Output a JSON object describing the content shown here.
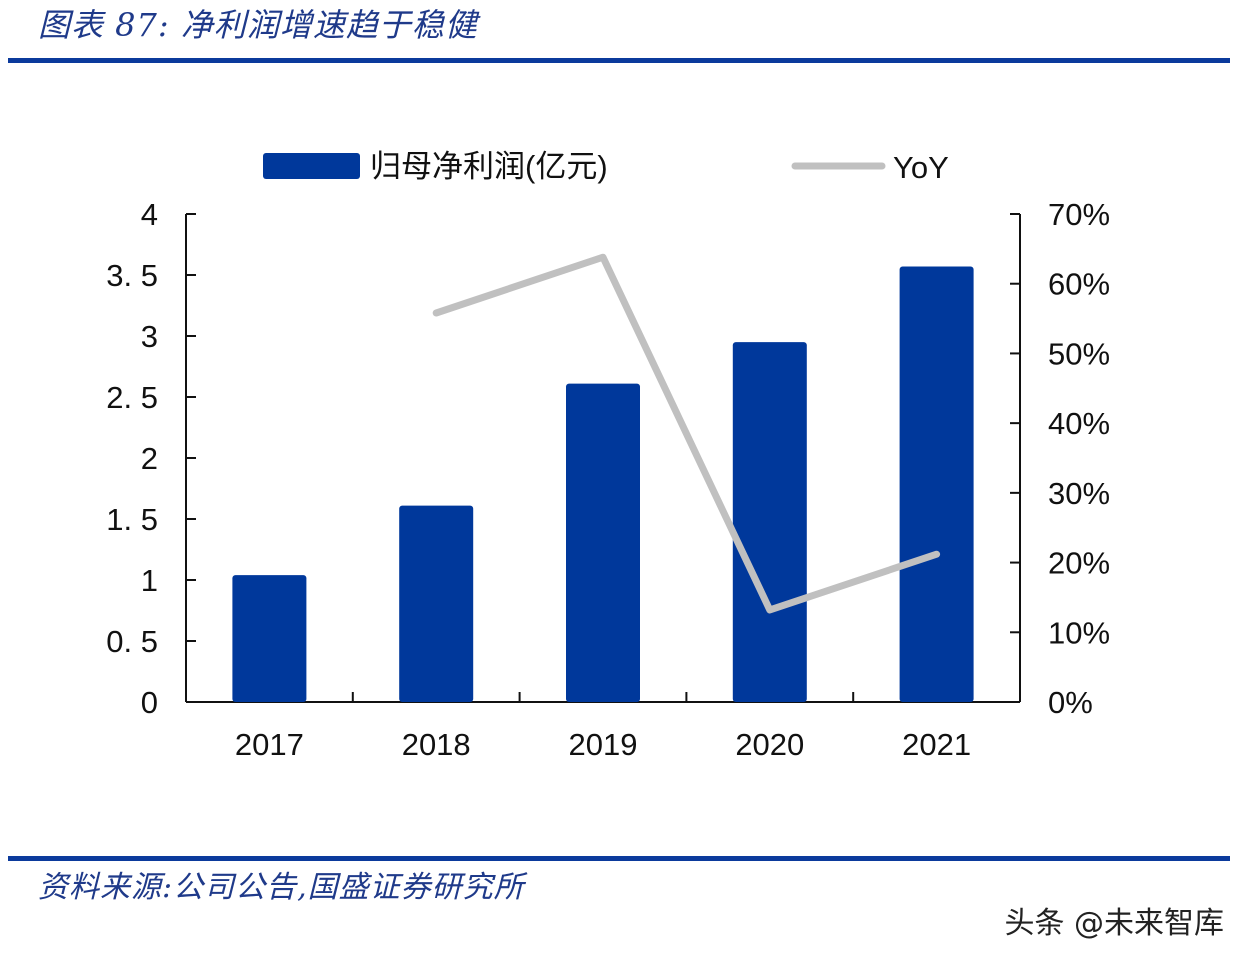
{
  "figure": {
    "title": "图表 87:  净利润增速趋于稳健",
    "source": "资料来源:公司公告,国盛证券研究所",
    "watermark": "头条 @未来智库"
  },
  "colors": {
    "bar": "#00389b",
    "line": "#c0c0c0",
    "rule": "#0b3a9c",
    "title_text": "#1f3a8a",
    "axis": "#111111"
  },
  "chart_data": {
    "type": "bar",
    "title": "净利润增速趋于稳健",
    "categories": [
      "2017",
      "2018",
      "2019",
      "2020",
      "2021"
    ],
    "series": [
      {
        "name": "归母净利润(亿元)",
        "type": "bar",
        "axis": "left",
        "values": [
          1.04,
          1.61,
          2.61,
          2.95,
          3.57
        ]
      },
      {
        "name": "YoY",
        "type": "line",
        "axis": "right",
        "values": [
          null,
          0.558,
          0.638,
          0.132,
          0.212
        ]
      }
    ],
    "xlabel": "",
    "ylabel": "",
    "ylim": [
      0,
      4
    ],
    "y_ticks": [
      "0",
      "0. 5",
      "1",
      "1. 5",
      "2",
      "2. 5",
      "3",
      "3. 5",
      "4"
    ],
    "y2lim": [
      0,
      0.7
    ],
    "y2_ticks": [
      "0%",
      "10%",
      "20%",
      "30%",
      "40%",
      "50%",
      "60%",
      "70%"
    ],
    "grid": false,
    "legend_position": "top",
    "legend": [
      {
        "label": "归母净利润(亿元)",
        "marker": "bar"
      },
      {
        "label": "YoY",
        "marker": "line"
      }
    ]
  }
}
